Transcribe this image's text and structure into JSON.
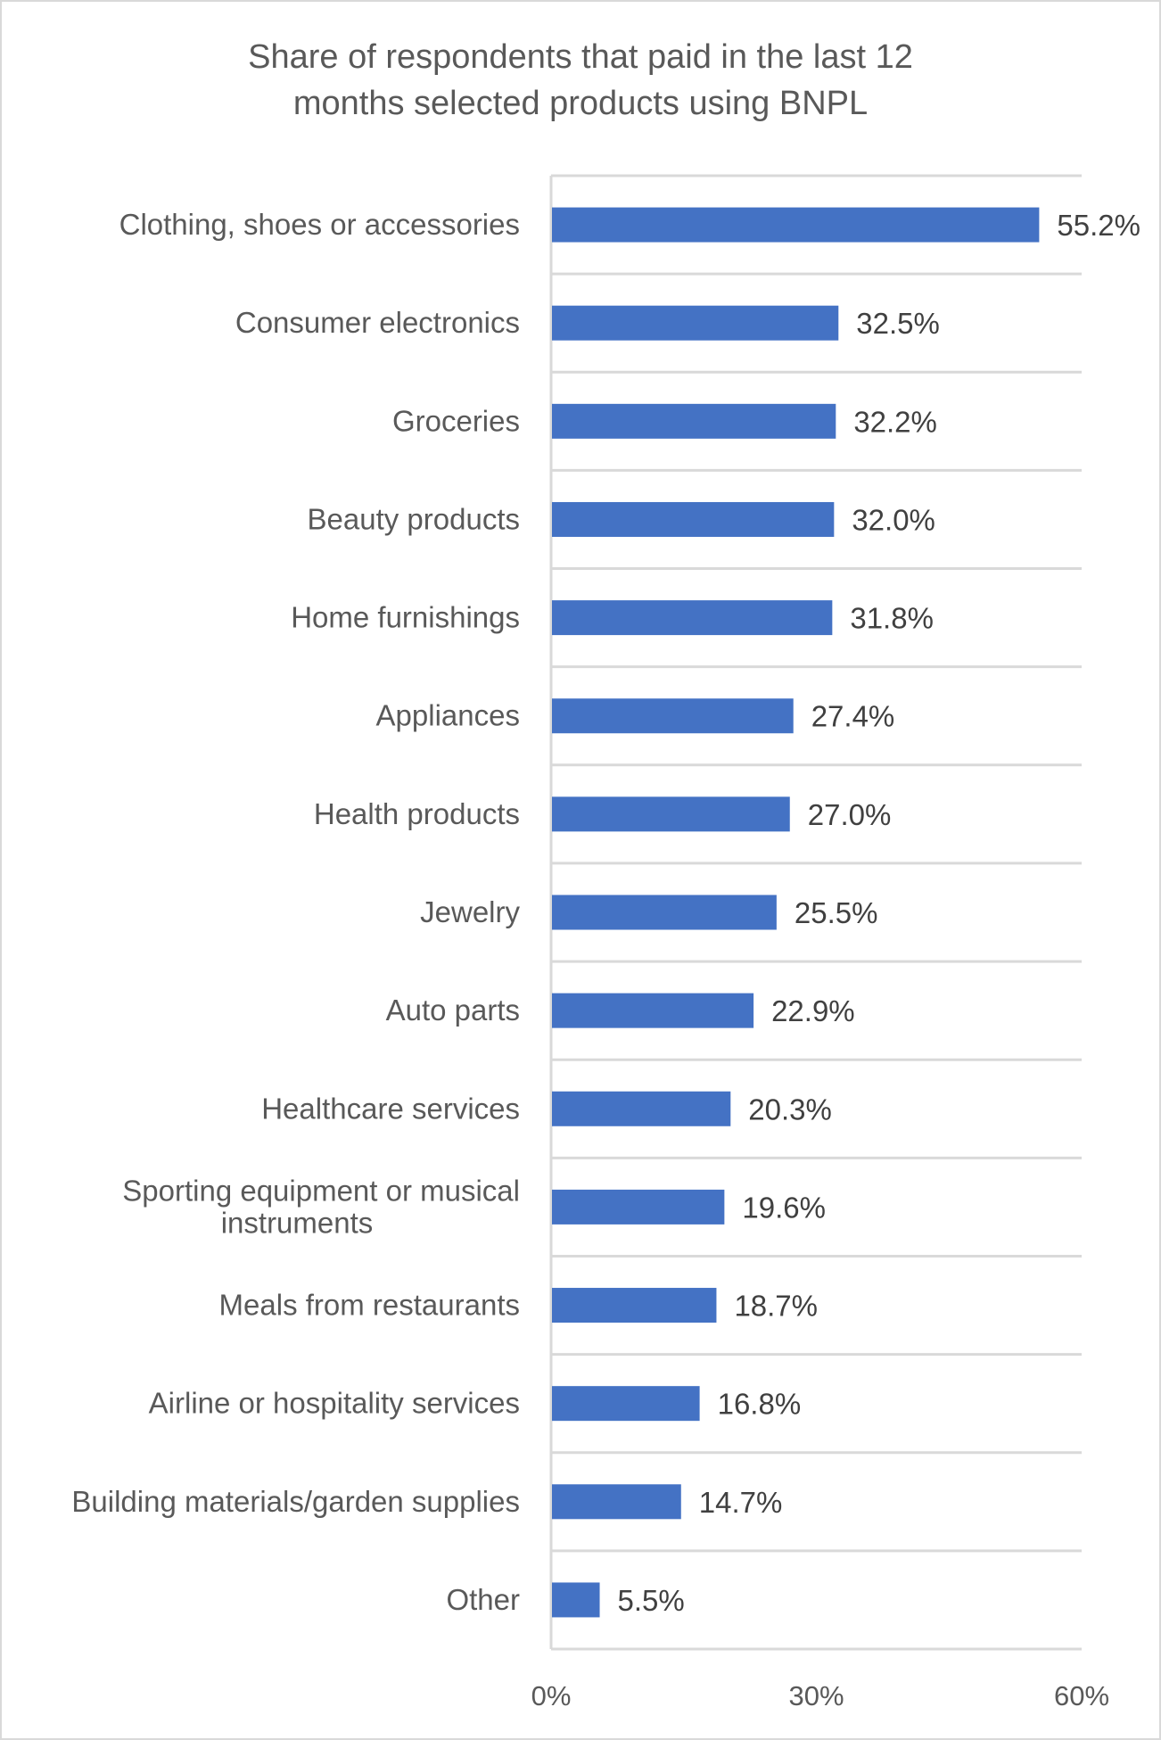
{
  "chart_data": {
    "type": "bar",
    "orientation": "horizontal",
    "title": "Share of respondents that paid in the last 12 months selected products using BNPL",
    "title_lines": [
      "Share of respondents that paid in the last 12",
      "months selected products using BNPL"
    ],
    "xlabel": "",
    "ylabel": "",
    "xlim": [
      0,
      60
    ],
    "x_ticks": [
      0,
      30,
      60
    ],
    "x_tick_labels": [
      "0%",
      "30%",
      "60%"
    ],
    "grid": "horizontal separators between categories",
    "legend": "none",
    "bar_color": "#4472c4",
    "categories": [
      [
        "Clothing, shoes or accessories"
      ],
      [
        "Consumer electronics"
      ],
      [
        "Groceries"
      ],
      [
        "Beauty products"
      ],
      [
        "Home furnishings"
      ],
      [
        "Appliances"
      ],
      [
        "Health products"
      ],
      [
        "Jewelry"
      ],
      [
        "Auto parts"
      ],
      [
        "Healthcare services"
      ],
      [
        "Sporting equipment or musical",
        "instruments"
      ],
      [
        "Meals from restaurants"
      ],
      [
        "Airline or hospitality services"
      ],
      [
        "Building materials/garden supplies"
      ],
      [
        "Other"
      ]
    ],
    "values": [
      55.2,
      32.5,
      32.2,
      32.0,
      31.8,
      27.4,
      27.0,
      25.5,
      22.9,
      20.3,
      19.6,
      18.7,
      16.8,
      14.7,
      5.5
    ],
    "data_labels": [
      "55.2%",
      "32.5%",
      "32.2%",
      "32.0%",
      "31.8%",
      "27.4%",
      "27.0%",
      "25.5%",
      "22.9%",
      "20.3%",
      "19.6%",
      "18.7%",
      "16.8%",
      "14.7%",
      "5.5%"
    ]
  }
}
